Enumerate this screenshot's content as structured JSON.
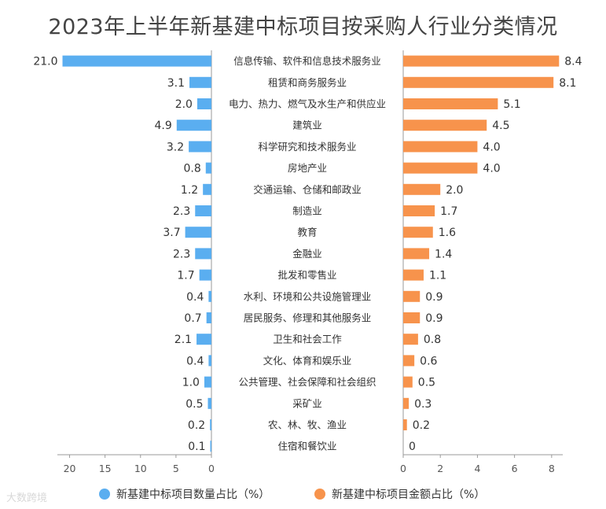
{
  "chart_data": {
    "type": "bar",
    "title": "2023年上半年新基建中标项目按采购人行业分类情况",
    "categories": [
      "信息传输、软件和信息技术服务业",
      "租赁和商务服务业",
      "电力、热力、燃气及水生产和供应业",
      "建筑业",
      "科学研究和技术服务业",
      "房地产业",
      "交通运输、仓储和邮政业",
      "制造业",
      "教育",
      "金融业",
      "批发和零售业",
      "水利、环境和公共设施管理业",
      "居民服务、修理和其他服务业",
      "卫生和社会工作",
      "文化、体育和娱乐业",
      "公共管理、社会保障和社会组织",
      "采矿业",
      "农、林、牧、渔业",
      "住宿和餐饮业"
    ],
    "series": [
      {
        "name": "新基建中标项目数量占比（%）",
        "color": "#5aaef0",
        "values": [
          21.0,
          3.1,
          2.0,
          4.9,
          3.2,
          0.8,
          1.2,
          2.3,
          3.7,
          2.3,
          1.7,
          0.4,
          0.7,
          2.1,
          0.4,
          1.0,
          0.5,
          0.2,
          0.1
        ],
        "labels": [
          "21.0",
          "3.1",
          "2.0",
          "4.9",
          "3.2",
          "0.8",
          "1.2",
          "2.3",
          "3.7",
          "2.3",
          "1.7",
          "0.4",
          "0.7",
          "2.1",
          "0.4",
          "1.0",
          "0.5",
          "0.2",
          "0.1"
        ],
        "xlim": [
          0,
          21.5
        ],
        "ticks": [
          20,
          15,
          10,
          5,
          0
        ],
        "tick_labels": [
          "20",
          "15",
          "10",
          "5",
          "0"
        ],
        "direction": "left"
      },
      {
        "name": "新基建中标项目金额占比（%）",
        "color": "#f7934c",
        "values": [
          8.4,
          8.1,
          5.1,
          4.5,
          4.0,
          4.0,
          2.0,
          1.7,
          1.6,
          1.4,
          1.1,
          0.9,
          0.9,
          0.8,
          0.6,
          0.5,
          0.3,
          0.2,
          0
        ],
        "labels": [
          "8.4",
          "8.1",
          "5.1",
          "4.5",
          "4.0",
          "4.0",
          "2.0",
          "1.7",
          "1.6",
          "1.4",
          "1.1",
          "0.9",
          "0.9",
          "0.8",
          "0.6",
          "0.5",
          "0.3",
          "0.2",
          "0"
        ],
        "xlim": [
          0,
          8.6
        ],
        "ticks": [
          0,
          2,
          4,
          6,
          8
        ],
        "tick_labels": [
          "0",
          "2",
          "4",
          "6",
          "8"
        ],
        "direction": "right"
      }
    ],
    "legend_position": "bottom"
  },
  "watermark": "大数跨境"
}
